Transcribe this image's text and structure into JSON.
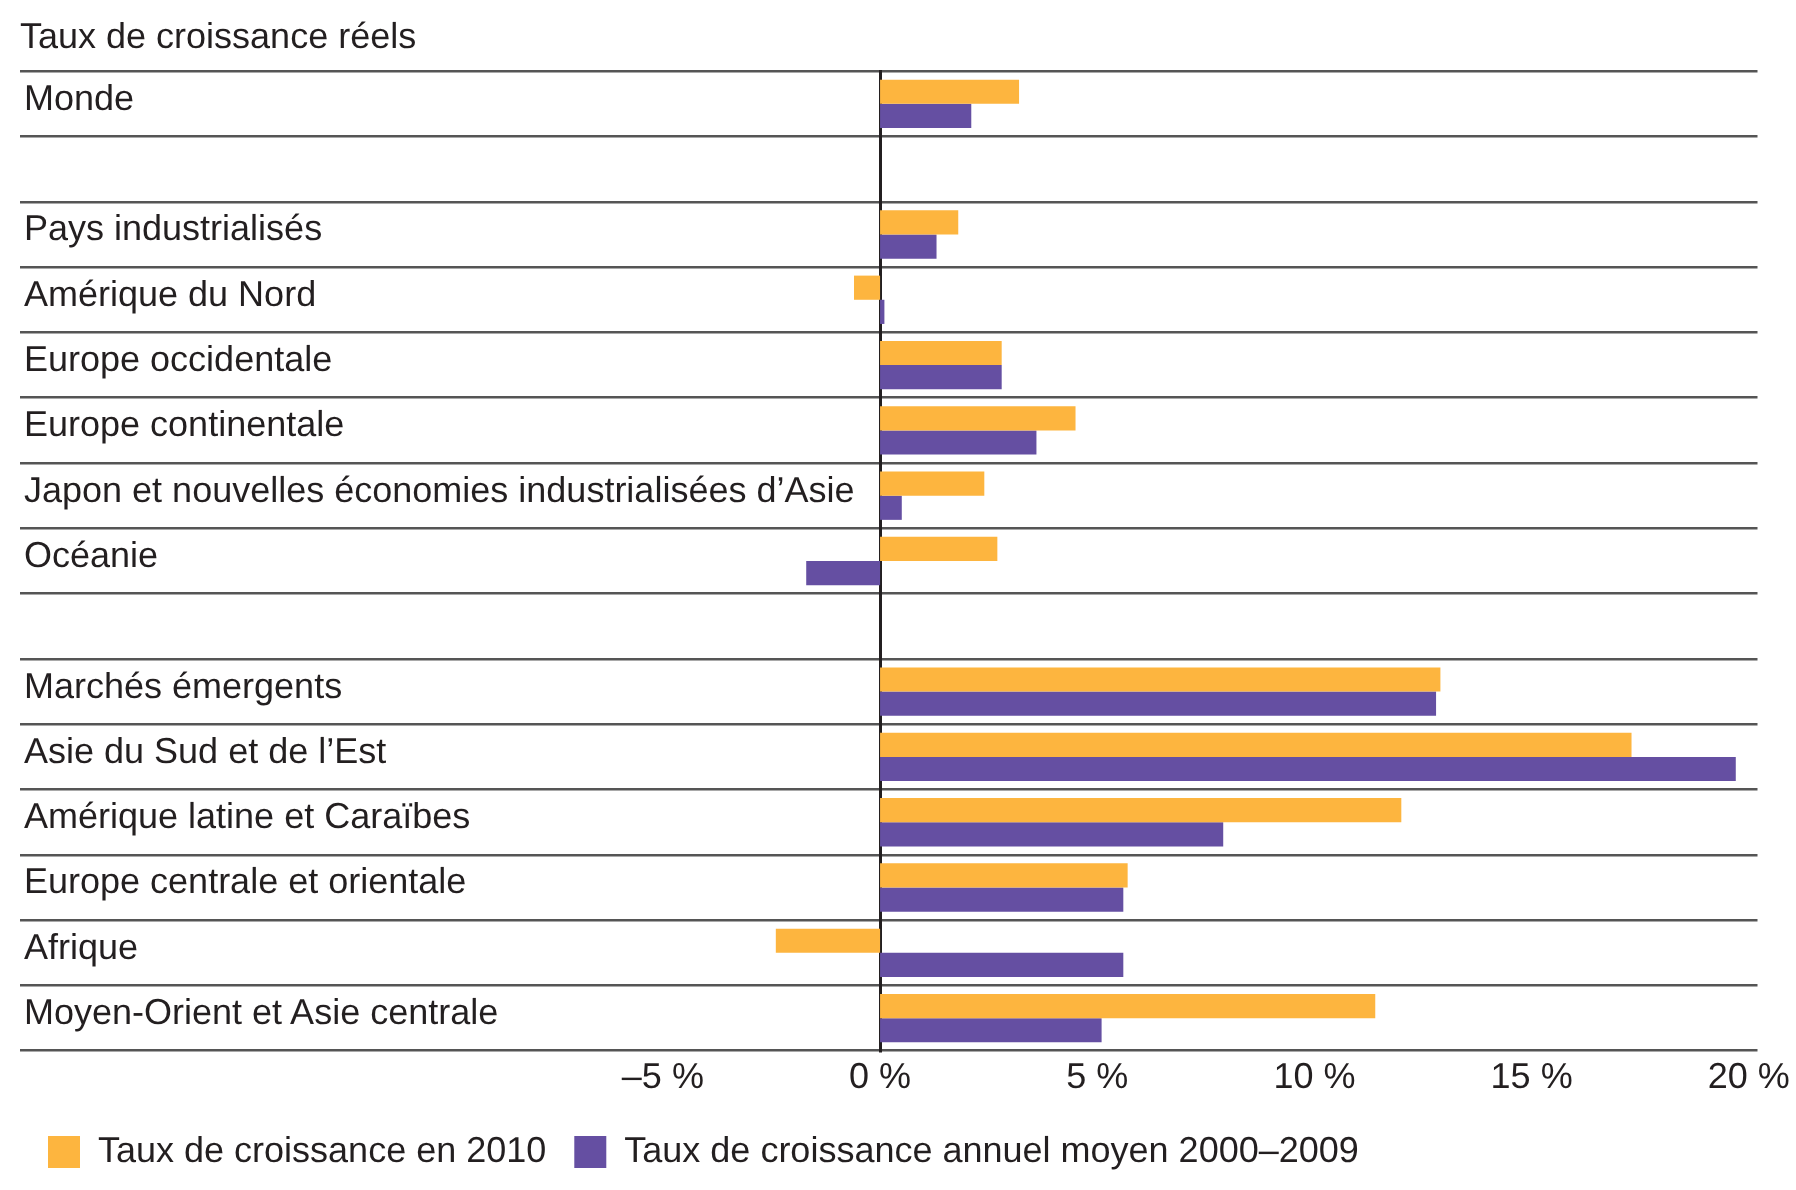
{
  "chart_data": {
    "type": "bar",
    "orientation": "horizontal",
    "title": "Taux de croissance réels",
    "categories": [
      "Monde",
      null,
      "Pays industrialisés",
      "Amérique du Nord",
      "Europe occidentale",
      "Europe continentale",
      "Japon et nouvelles économies industrialisées d’Asie",
      "Océanie",
      null,
      "Marchés émergents",
      "Asie du Sud et de l’Est",
      "Amérique latine et Caraïbes",
      "Europe centrale et orientale",
      "Afrique",
      "Moyen-Orient et Asie centrale"
    ],
    "series": [
      {
        "name": "Taux de croissance en 2010",
        "color": "#fdb53f",
        "values": [
          3.2,
          null,
          1.8,
          -0.6,
          2.8,
          4.5,
          2.4,
          2.7,
          null,
          12.9,
          17.3,
          12.0,
          5.7,
          -2.4,
          11.4
        ]
      },
      {
        "name": "Taux de croissance annuel moyen 2000–2009",
        "color": "#654fa2",
        "values": [
          2.1,
          null,
          1.3,
          0.1,
          2.8,
          3.6,
          0.5,
          -1.7,
          null,
          12.8,
          19.7,
          7.9,
          5.6,
          5.6,
          5.1
        ]
      }
    ],
    "xlim": [
      -19.8,
      20.2
    ],
    "xticks": [
      {
        "value": -5,
        "label": "–5 %"
      },
      {
        "value": 0,
        "label": "0 %"
      },
      {
        "value": 5,
        "label": "5 %"
      },
      {
        "value": 10,
        "label": "10 %"
      },
      {
        "value": 15,
        "label": "15 %"
      },
      {
        "value": 20,
        "label": "20 %"
      }
    ],
    "grid": "y",
    "legend": "bottom left"
  }
}
